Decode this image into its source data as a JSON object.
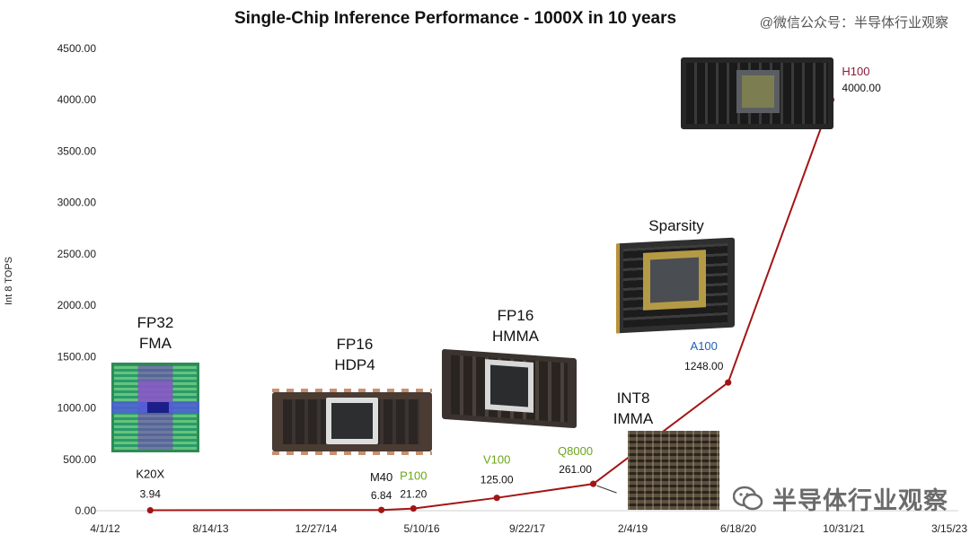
{
  "watermarks": {
    "top": "@微信公众号：半导体行业观察",
    "bottom": "半导体行业观察"
  },
  "colors": {
    "line": "#a31515",
    "label_default": "#111111",
    "label_green": "#6aa51a",
    "label_blue": "#1f5fb4",
    "label_maroon": "#8b1a3a",
    "axis": "#cfcfcf"
  },
  "chart_data": {
    "type": "line",
    "title": "Single-Chip Inference Performance - 1000X in 10 years",
    "xlabel": "",
    "ylabel": "Int 8 TOPS",
    "ylim": [
      0,
      4500
    ],
    "yticks": [
      "0.00",
      "500.00",
      "1000.00",
      "1500.00",
      "2000.00",
      "2500.00",
      "3000.00",
      "3500.00",
      "4000.00",
      "4500.00"
    ],
    "xticks": [
      "4/1/12",
      "8/14/13",
      "12/27/14",
      "5/10/16",
      "9/22/17",
      "2/4/19",
      "6/18/20",
      "10/31/21",
      "3/15/23"
    ],
    "grid": false,
    "points": [
      {
        "name": "K20X",
        "date": "2012-11-01",
        "value": 3.94,
        "value_label": "3.94",
        "color": "label_default"
      },
      {
        "name": "M40",
        "date": "2015-11-01",
        "value": 6.84,
        "value_label": "6.84",
        "color": "label_default"
      },
      {
        "name": "P100",
        "date": "2016-04-01",
        "value": 21.2,
        "value_label": "21.20",
        "color": "label_green"
      },
      {
        "name": "V100",
        "date": "2017-05-01",
        "value": 125.0,
        "value_label": "125.00",
        "color": "label_green"
      },
      {
        "name": "Q8000",
        "date": "2018-08-01",
        "value": 261.0,
        "value_label": "261.00",
        "color": "label_green"
      },
      {
        "name": "A100",
        "date": "2020-05-01",
        "value": 1248.0,
        "value_label": "1248.00",
        "color": "label_blue"
      },
      {
        "name": "H100",
        "date": "2021-09-01",
        "value": 4000.0,
        "value_label": "4000.00",
        "color": "label_maroon"
      }
    ],
    "annotations": [
      {
        "id": "fp32",
        "lines": [
          "FP32",
          "FMA"
        ]
      },
      {
        "id": "fp16-hdp4",
        "lines": [
          "FP16",
          "HDP4"
        ]
      },
      {
        "id": "fp16-hmma",
        "lines": [
          "FP16",
          "HMMA"
        ]
      },
      {
        "id": "int8",
        "lines": [
          "INT8",
          "IMMA"
        ]
      },
      {
        "id": "sparsity",
        "lines": [
          "Sparsity"
        ]
      }
    ]
  }
}
